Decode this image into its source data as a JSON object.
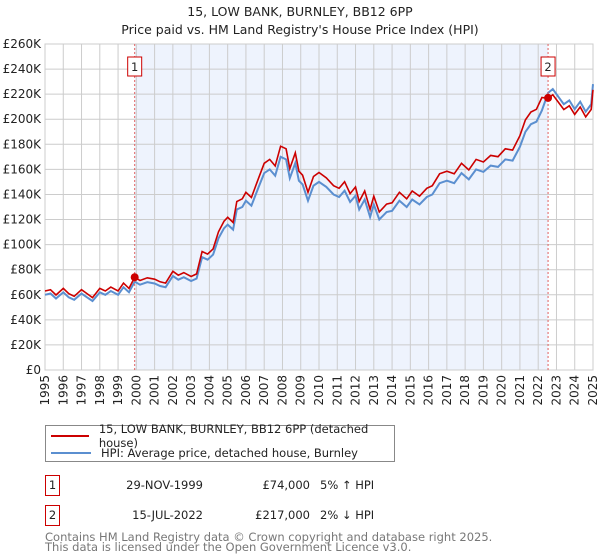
{
  "chart_data": {
    "type": "line",
    "title": "15, LOW BANK, BURNLEY, BB12 6PP",
    "subtitle": "Price paid vs. HM Land Registry's House Price Index (HPI)",
    "xlim": [
      1995,
      2025
    ],
    "ylim": [
      0,
      260000
    ],
    "grid": true,
    "y_ticks": [
      0,
      20000,
      40000,
      60000,
      80000,
      100000,
      120000,
      140000,
      160000,
      180000,
      200000,
      220000,
      240000,
      260000
    ],
    "y_tick_labels": [
      "£0",
      "£20K",
      "£40K",
      "£60K",
      "£80K",
      "£100K",
      "£120K",
      "£140K",
      "£160K",
      "£180K",
      "£200K",
      "£220K",
      "£240K",
      "£260K"
    ],
    "x_tick_labels": [
      "1995",
      "1996",
      "1997",
      "1998",
      "1999",
      "2000",
      "2001",
      "2002",
      "2003",
      "2004",
      "2005",
      "2006",
      "2007",
      "2008",
      "2009",
      "2010",
      "2011",
      "2012",
      "2013",
      "2014",
      "2015",
      "2016",
      "2017",
      "2018",
      "2019",
      "2020",
      "2021",
      "2022",
      "2023",
      "2024",
      "2025"
    ],
    "shaded_range": [
      1999.91,
      2022.54
    ],
    "colors": {
      "property": "#cc0000",
      "hpi": "#5b8fd0",
      "shade": "#eef3fd",
      "grid": "#cccccc",
      "marker_line": "#e06060"
    },
    "hpi_series": {
      "name": "HPI: Average price, detached house, Burnley",
      "x": [
        1995,
        1995.3,
        1995.6,
        1996,
        1996.3,
        1996.6,
        1997,
        1997.3,
        1997.6,
        1998,
        1998.3,
        1998.6,
        1999,
        1999.3,
        1999.6,
        1999.91,
        2000.2,
        2000.6,
        2001,
        2001.3,
        2001.6,
        2002,
        2002.3,
        2002.6,
        2003,
        2003.3,
        2003.6,
        2003.9,
        2004.2,
        2004.5,
        2004.8,
        2005,
        2005.3,
        2005.5,
        2005.8,
        2006,
        2006.3,
        2006.7,
        2007,
        2007.3,
        2007.6,
        2007.9,
        2008.2,
        2008.4,
        2008.7,
        2008.9,
        2009.1,
        2009.4,
        2009.7,
        2010,
        2010.4,
        2010.8,
        2011.1,
        2011.4,
        2011.7,
        2012,
        2012.2,
        2012.5,
        2012.8,
        2013,
        2013.3,
        2013.7,
        2014,
        2014.4,
        2014.8,
        2015.1,
        2015.5,
        2015.9,
        2016.2,
        2016.6,
        2017,
        2017.4,
        2017.8,
        2018.2,
        2018.6,
        2019,
        2019.4,
        2019.8,
        2020.2,
        2020.6,
        2021,
        2021.3,
        2021.6,
        2021.9,
        2022.2,
        2022.54,
        2022.8,
        2023.1,
        2023.4,
        2023.7,
        2024,
        2024.3,
        2024.6,
        2024.9,
        2025
      ],
      "values": [
        60000,
        61000,
        57000,
        62000,
        58000,
        56000,
        61000,
        58000,
        55000,
        62000,
        60000,
        63000,
        60000,
        66000,
        62000,
        70500,
        68000,
        70000,
        69000,
        67000,
        66000,
        75000,
        72000,
        74000,
        71000,
        73000,
        90000,
        88000,
        92000,
        105000,
        113000,
        116000,
        112000,
        128000,
        130000,
        135000,
        131000,
        146000,
        157000,
        160000,
        155000,
        170000,
        168000,
        153000,
        165000,
        151000,
        148000,
        135000,
        147000,
        150000,
        146000,
        140000,
        138000,
        143000,
        134000,
        139000,
        128000,
        136000,
        122000,
        132000,
        120000,
        126000,
        127000,
        135000,
        130000,
        136000,
        132000,
        138000,
        140000,
        149000,
        151000,
        149000,
        157000,
        152000,
        160000,
        158000,
        163000,
        162000,
        168000,
        167000,
        178000,
        190000,
        196000,
        198000,
        207000,
        221000,
        224000,
        218000,
        212000,
        215000,
        208000,
        214000,
        206000,
        212000,
        228000
      ]
    },
    "property_series": {
      "name": "15, LOW BANK, BURNLEY, BB12 6PP (detached house)",
      "derived_from": "hpi_series scaled through sale points"
    },
    "sales": [
      {
        "label": "1",
        "x": 1999.91,
        "date": "29-NOV-1999",
        "price": 74000,
        "price_text": "£74,000",
        "hpi_text": "5% ↑ HPI",
        "ratio": 1.05
      },
      {
        "label": "2",
        "x": 2022.54,
        "date": "15-JUL-2022",
        "price": 217000,
        "price_text": "£217,000",
        "hpi_text": "2% ↓ HPI",
        "ratio": 0.98
      }
    ]
  },
  "legend": {
    "property": "15, LOW BANK, BURNLEY, BB12 6PP (detached house)",
    "hpi": "HPI: Average price, detached house, Burnley"
  },
  "footer": {
    "line1": "Contains HM Land Registry data © Crown copyright and database right 2025.",
    "line2": "This data is licensed under the Open Government Licence v3.0."
  }
}
